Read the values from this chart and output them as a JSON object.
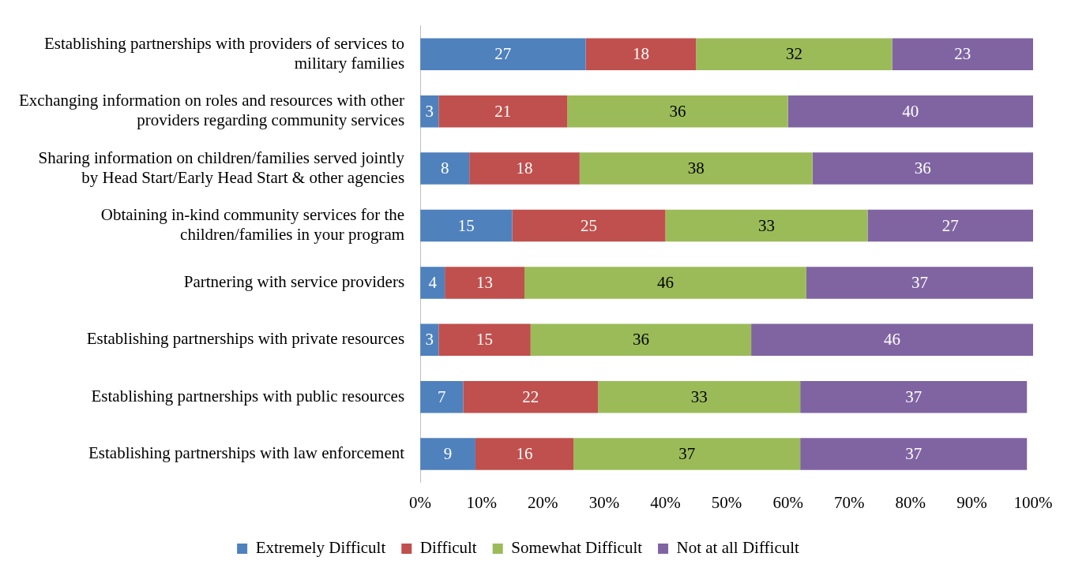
{
  "chart_data": {
    "type": "bar",
    "orientation": "horizontal",
    "stacked": true,
    "categories": [
      "Establishing partnerships with providers of services to military families",
      "Exchanging information on roles and resources with other providers regarding community services",
      "Sharing information on children/families served jointly by Head Start/Early Head Start & other agencies",
      "Obtaining in-kind community services for the children/families in your program",
      "Partnering with service providers",
      "Establishing partnerships with private resources",
      "Establishing partnerships with public resources",
      "Establishing partnerships with law enforcement"
    ],
    "series": [
      {
        "name": "Extremely Difficult",
        "color": "#4f81bd",
        "values": [
          27,
          3,
          8,
          15,
          4,
          3,
          7,
          9
        ]
      },
      {
        "name": "Difficult",
        "color": "#c0504d",
        "values": [
          18,
          21,
          18,
          25,
          13,
          15,
          22,
          16
        ]
      },
      {
        "name": "Somewhat Difficult",
        "color": "#9bbb59",
        "values": [
          32,
          36,
          38,
          33,
          46,
          36,
          33,
          37
        ]
      },
      {
        "name": "Not at all Difficult",
        "color": "#8064a2",
        "values": [
          23,
          40,
          36,
          27,
          37,
          46,
          37,
          37
        ]
      }
    ],
    "xlim": [
      0,
      100
    ],
    "xticks": [
      {
        "value": 0,
        "label": "0%"
      },
      {
        "value": 10,
        "label": "10%"
      },
      {
        "value": 20,
        "label": "20%"
      },
      {
        "value": 30,
        "label": "30%"
      },
      {
        "value": 40,
        "label": "40%"
      },
      {
        "value": 50,
        "label": "50%"
      },
      {
        "value": 60,
        "label": "60%"
      },
      {
        "value": 70,
        "label": "70%"
      },
      {
        "value": 80,
        "label": "80%"
      },
      {
        "value": 90,
        "label": "90%"
      },
      {
        "value": 100,
        "label": "100%"
      }
    ],
    "grid": false,
    "legend": "bottom",
    "data_labels": true
  }
}
